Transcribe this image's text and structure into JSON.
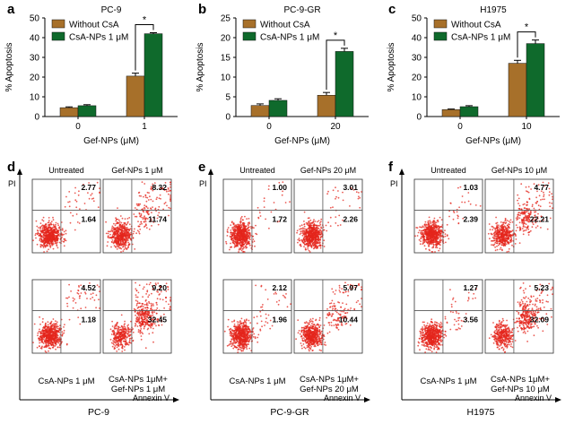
{
  "panel_labels": [
    "a",
    "b",
    "c",
    "d",
    "e",
    "f"
  ],
  "chart_data": [
    {
      "type": "bar",
      "title": "PC-9",
      "ylabel": "% Apoptosis",
      "xlabel": "Gef-NPs (μM)",
      "categories": [
        "0",
        "1"
      ],
      "ylim": [
        0,
        50
      ],
      "yticks": [
        0,
        10,
        20,
        30,
        40,
        50
      ],
      "series": [
        {
          "name": "Without CsA",
          "values": [
            4.5,
            20.5
          ],
          "errors": [
            0.4,
            1.5
          ],
          "color": "#a7702a"
        },
        {
          "name": "CsA-NPs 1 μM",
          "values": [
            5.5,
            42
          ],
          "errors": [
            0.5,
            0.5
          ],
          "color": "#0f6a2c"
        }
      ],
      "significance": [
        {
          "category": "1",
          "label": "*"
        }
      ],
      "legend": "top-left"
    },
    {
      "type": "bar",
      "title": "PC-9-GR",
      "ylabel": "% Apoptosis",
      "xlabel": "Gef-NPs (μM)",
      "categories": [
        "0",
        "20"
      ],
      "ylim": [
        0,
        25
      ],
      "yticks": [
        0,
        5,
        10,
        15,
        20,
        25
      ],
      "series": [
        {
          "name": "Without CsA",
          "values": [
            2.8,
            5.4
          ],
          "errors": [
            0.4,
            0.7
          ],
          "color": "#a7702a"
        },
        {
          "name": "CsA-NPs 1 μM",
          "values": [
            4.1,
            16.5
          ],
          "errors": [
            0.4,
            0.8
          ],
          "color": "#0f6a2c"
        }
      ],
      "significance": [
        {
          "category": "20",
          "label": "*"
        }
      ],
      "legend": "top-left"
    },
    {
      "type": "bar",
      "title": "H1975",
      "ylabel": "% Apoptosis",
      "xlabel": "Gef-NPs (μM)",
      "categories": [
        "0",
        "10"
      ],
      "ylim": [
        0,
        50
      ],
      "yticks": [
        0,
        10,
        20,
        30,
        40,
        50
      ],
      "series": [
        {
          "name": "Without CsA",
          "values": [
            3.5,
            27
          ],
          "errors": [
            0.3,
            1.5
          ],
          "color": "#a7702a"
        },
        {
          "name": "CsA-NPs 1 μM",
          "values": [
            5,
            37
          ],
          "errors": [
            0.5,
            1.8
          ],
          "color": "#0f6a2c"
        }
      ],
      "significance": [
        {
          "category": "10",
          "label": "*"
        }
      ],
      "legend": "top-left"
    }
  ],
  "flow_panels": [
    {
      "cell_line": "PC-9",
      "col_titles": [
        "Untreated",
        "Gef-NPs 1 μM"
      ],
      "row_captions": [
        [
          "CsA-NPs 1 μM"
        ],
        [
          "CsA-NPs 1μM+",
          "Gef-NPs 1 μM"
        ]
      ],
      "ylabel": "PI",
      "xlabel": "Annexin V",
      "plots": [
        {
          "upper_right": "2.77",
          "lower_right": "1.64"
        },
        {
          "upper_right": "8.32",
          "lower_right": "11.74"
        },
        {
          "upper_right": "4.52",
          "lower_right": "1.18"
        },
        {
          "upper_right": "9.20",
          "lower_right": "32.45"
        }
      ]
    },
    {
      "cell_line": "PC-9-GR",
      "col_titles": [
        "Untreated",
        "Gef-NPs 20 μM"
      ],
      "row_captions": [
        [
          "CsA-NPs 1 μM"
        ],
        [
          "CsA-NPs 1μM+",
          "Gef-NPs 20 μM"
        ]
      ],
      "ylabel": "PI",
      "xlabel": "Annexin V",
      "plots": [
        {
          "upper_right": "1.00",
          "lower_right": "1.72"
        },
        {
          "upper_right": "3.01",
          "lower_right": "2.26"
        },
        {
          "upper_right": "2.12",
          "lower_right": "1.96"
        },
        {
          "upper_right": "5.97",
          "lower_right": "10.44"
        }
      ]
    },
    {
      "cell_line": "H1975",
      "col_titles": [
        "Untreated",
        "Gef-NPs 10 μM"
      ],
      "row_captions": [
        [
          "CsA-NPs 1 μM"
        ],
        [
          "CsA-NPs 1μM+",
          "Gef-NPs 10 μM"
        ]
      ],
      "ylabel": "PI",
      "xlabel": "Annexin V",
      "plots": [
        {
          "upper_right": "1.03",
          "lower_right": "2.39"
        },
        {
          "upper_right": "4.77",
          "lower_right": "22.21"
        },
        {
          "upper_right": "1.27",
          "lower_right": "3.56"
        },
        {
          "upper_right": "5.23",
          "lower_right": "32.09"
        }
      ]
    }
  ],
  "flow_colors": {
    "dots": "#e4261c",
    "quadrant_lines": "#555555"
  }
}
